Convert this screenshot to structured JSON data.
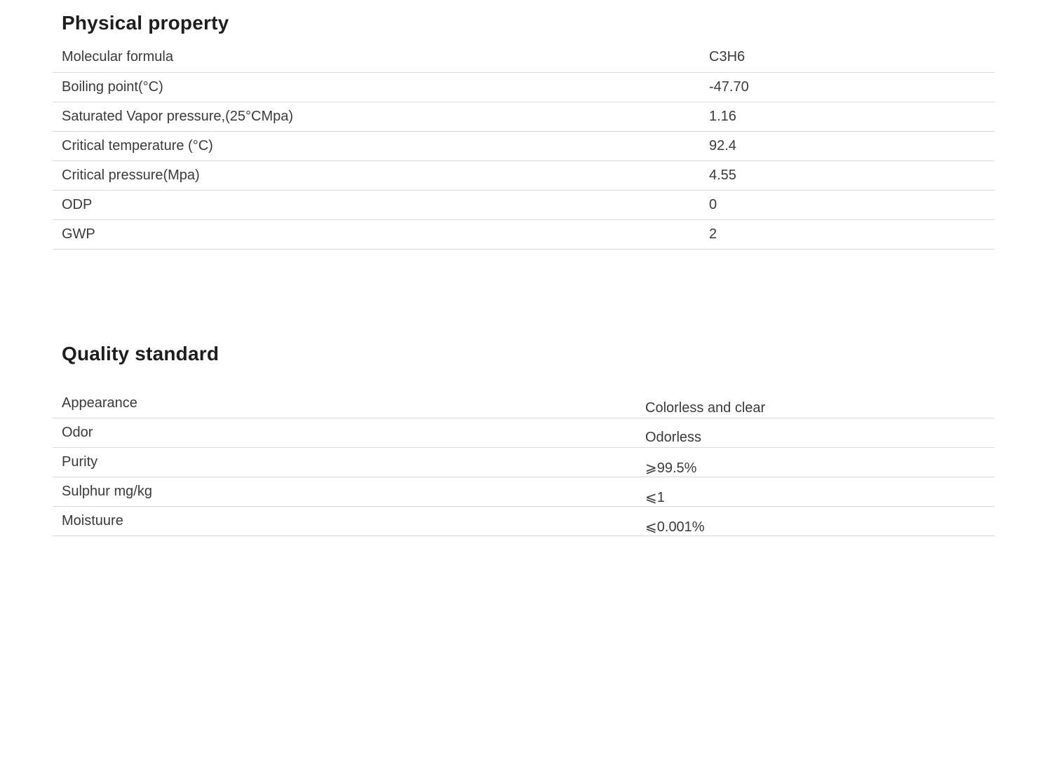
{
  "sections": [
    {
      "title": "Physical property",
      "rows": [
        {
          "label": "Molecular formula",
          "value": "C3H6"
        },
        {
          "label": "Boiling point(°C)",
          "value": "-47.70"
        },
        {
          "label": "Saturated Vapor pressure,(25°CMpa)",
          "value": "1.16"
        },
        {
          "label": "Critical temperature (°C)",
          "value": "92.4"
        },
        {
          "label": "Critical pressure(Mpa)",
          "value": "4.55"
        },
        {
          "label": "ODP",
          "value": "0"
        },
        {
          "label": "GWP",
          "value": "2"
        }
      ]
    },
    {
      "title": "Quality standard",
      "rows": [
        {
          "label": "Appearance",
          "value": "Colorless and clear"
        },
        {
          "label": "Odor",
          "value": "Odorless"
        },
        {
          "label": "Purity",
          "value": "⩾99.5%"
        },
        {
          "label": "Sulphur mg/kg",
          "value": "⩽1"
        },
        {
          "label": "Moistuure",
          "value": "⩽0.001%"
        }
      ]
    }
  ],
  "colors": {
    "text": "#3a3a3a",
    "title": "#1e1e1e",
    "divider": "#d9d9d9",
    "background": "#ffffff"
  }
}
